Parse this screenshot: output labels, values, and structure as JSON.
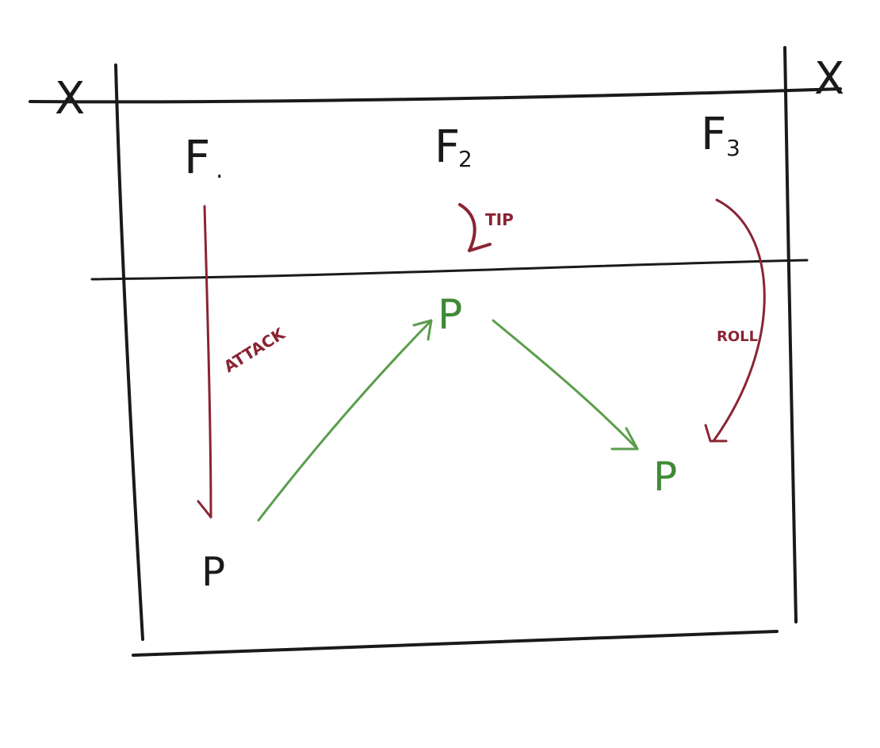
{
  "colors": {
    "ink": "#1a1a1a",
    "attack": "#8a2433",
    "pass": "#5a9e4b",
    "player_green": "#3f8a36"
  },
  "court": {
    "left_marker": "X",
    "right_marker": "X"
  },
  "zones": {
    "f1": "F",
    "f1_dot": ".",
    "f2": "F",
    "f2_sub": "2",
    "f3": "F",
    "f3_sub": "3"
  },
  "shots": {
    "attack": "ATTACK",
    "tip": "TIP",
    "roll": "ROLL"
  },
  "players": {
    "p1": "P",
    "p2": "P",
    "p3": "P"
  }
}
